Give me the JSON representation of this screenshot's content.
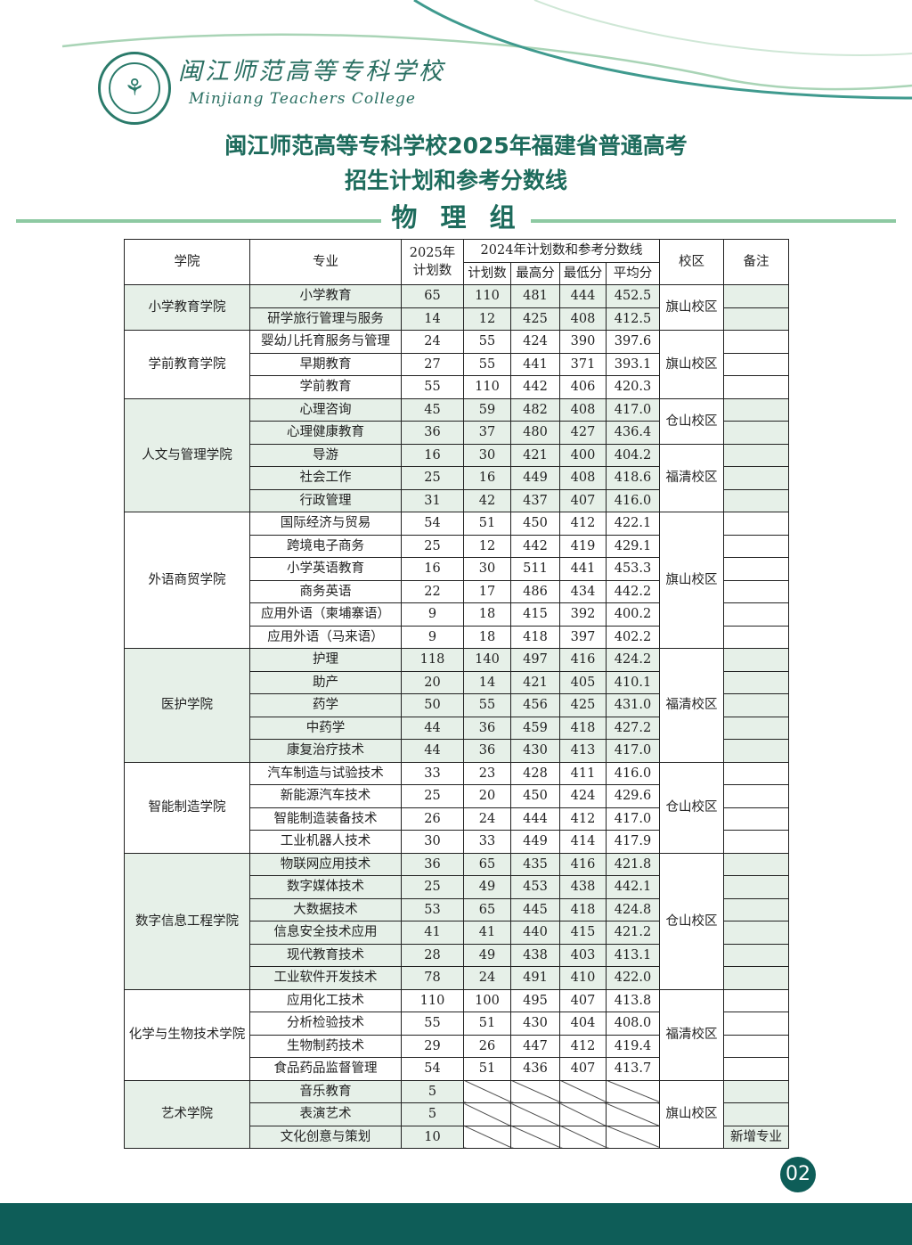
{
  "header": {
    "school_cn": "闽江师范高等专科学校",
    "school_en": "Minjiang Teachers College",
    "title_line1": "闽江师范高等专科学校2025年福建省普通高考",
    "title_line2": "招生计划和参考分数线",
    "group": "物 理 组"
  },
  "colors": {
    "accent": "#1d6b5c",
    "row_shade": "#e6f0e8",
    "footer": "#0e5d58"
  },
  "table": {
    "headers": {
      "college": "学院",
      "major": "专业",
      "plan2025": "2025年计划数",
      "group2024": "2024年计划数和参考分数线",
      "plan2024": "计划数",
      "max": "最高分",
      "min": "最低分",
      "avg": "平均分",
      "campus": "校区",
      "note": "备注"
    },
    "colleges": [
      {
        "name": "小学教育学院",
        "campuses": [
          {
            "name": "旗山校区",
            "span": 2
          }
        ],
        "majors": [
          [
            "小学教育",
            65,
            110,
            481,
            444,
            "452.5"
          ],
          [
            "研学旅行管理与服务",
            14,
            12,
            425,
            408,
            "412.5"
          ]
        ]
      },
      {
        "name": "学前教育学院",
        "campuses": [
          {
            "name": "旗山校区",
            "span": 3
          }
        ],
        "majors": [
          [
            "婴幼儿托育服务与管理",
            24,
            55,
            424,
            390,
            "397.6"
          ],
          [
            "早期教育",
            27,
            55,
            441,
            371,
            "393.1"
          ],
          [
            "学前教育",
            55,
            110,
            442,
            406,
            "420.3"
          ]
        ]
      },
      {
        "name": "人文与管理学院",
        "campuses": [
          {
            "name": "仓山校区",
            "span": 2
          },
          {
            "name": "福清校区",
            "span": 3
          }
        ],
        "majors": [
          [
            "心理咨询",
            45,
            59,
            482,
            408,
            "417.0"
          ],
          [
            "心理健康教育",
            36,
            37,
            480,
            427,
            "436.4"
          ],
          [
            "导游",
            16,
            30,
            421,
            400,
            "404.2"
          ],
          [
            "社会工作",
            25,
            16,
            449,
            408,
            "418.6"
          ],
          [
            "行政管理",
            31,
            42,
            437,
            407,
            "416.0"
          ]
        ]
      },
      {
        "name": "外语商贸学院",
        "campuses": [
          {
            "name": "旗山校区",
            "span": 6
          }
        ],
        "majors": [
          [
            "国际经济与贸易",
            54,
            51,
            450,
            412,
            "422.1"
          ],
          [
            "跨境电子商务",
            25,
            12,
            442,
            419,
            "429.1"
          ],
          [
            "小学英语教育",
            16,
            30,
            511,
            441,
            "453.3"
          ],
          [
            "商务英语",
            22,
            17,
            486,
            434,
            "442.2"
          ],
          [
            "应用外语（柬埔寨语）",
            9,
            18,
            415,
            392,
            "400.2"
          ],
          [
            "应用外语（马来语）",
            9,
            18,
            418,
            397,
            "402.2"
          ]
        ]
      },
      {
        "name": "医护学院",
        "campuses": [
          {
            "name": "福清校区",
            "span": 5
          }
        ],
        "majors": [
          [
            "护理",
            118,
            140,
            497,
            416,
            "424.2"
          ],
          [
            "助产",
            20,
            14,
            421,
            405,
            "410.1"
          ],
          [
            "药学",
            50,
            55,
            456,
            425,
            "431.0"
          ],
          [
            "中药学",
            44,
            36,
            459,
            418,
            "427.2"
          ],
          [
            "康复治疗技术",
            44,
            36,
            430,
            413,
            "417.0"
          ]
        ]
      },
      {
        "name": "智能制造学院",
        "campuses": [
          {
            "name": "仓山校区",
            "span": 4
          }
        ],
        "majors": [
          [
            "汽车制造与试验技术",
            33,
            23,
            428,
            411,
            "416.0"
          ],
          [
            "新能源汽车技术",
            25,
            20,
            450,
            424,
            "429.6"
          ],
          [
            "智能制造装备技术",
            26,
            24,
            444,
            412,
            "417.0"
          ],
          [
            "工业机器人技术",
            30,
            33,
            449,
            414,
            "417.9"
          ]
        ]
      },
      {
        "name": "数字信息工程学院",
        "campuses": [
          {
            "name": "仓山校区",
            "span": 6
          }
        ],
        "majors": [
          [
            "物联网应用技术",
            36,
            65,
            435,
            416,
            "421.8"
          ],
          [
            "数字媒体技术",
            25,
            49,
            453,
            438,
            "442.1"
          ],
          [
            "大数据技术",
            53,
            65,
            445,
            418,
            "424.8"
          ],
          [
            "信息安全技术应用",
            41,
            41,
            440,
            415,
            "421.2"
          ],
          [
            "现代教育技术",
            28,
            49,
            438,
            403,
            "413.1"
          ],
          [
            "工业软件开发技术",
            78,
            24,
            491,
            410,
            "422.0"
          ]
        ]
      },
      {
        "name": "化学与生物技术学院",
        "campuses": [
          {
            "name": "福清校区",
            "span": 4
          }
        ],
        "majors": [
          [
            "应用化工技术",
            110,
            100,
            495,
            407,
            "413.8"
          ],
          [
            "分析检验技术",
            55,
            51,
            430,
            404,
            "408.0"
          ],
          [
            "生物制药技术",
            29,
            26,
            447,
            412,
            "419.4"
          ],
          [
            "食品药品监督管理",
            54,
            51,
            436,
            407,
            "413.7"
          ]
        ]
      },
      {
        "name": "艺术学院",
        "campuses": [
          {
            "name": "旗山校区",
            "span": 3
          }
        ],
        "majors": [
          [
            "音乐教育",
            5
          ],
          [
            "表演艺术",
            5
          ],
          [
            "文化创意与策划",
            10,
            null,
            null,
            null,
            null,
            "新增专业"
          ]
        ]
      }
    ]
  },
  "footer": {
    "page": "02"
  }
}
